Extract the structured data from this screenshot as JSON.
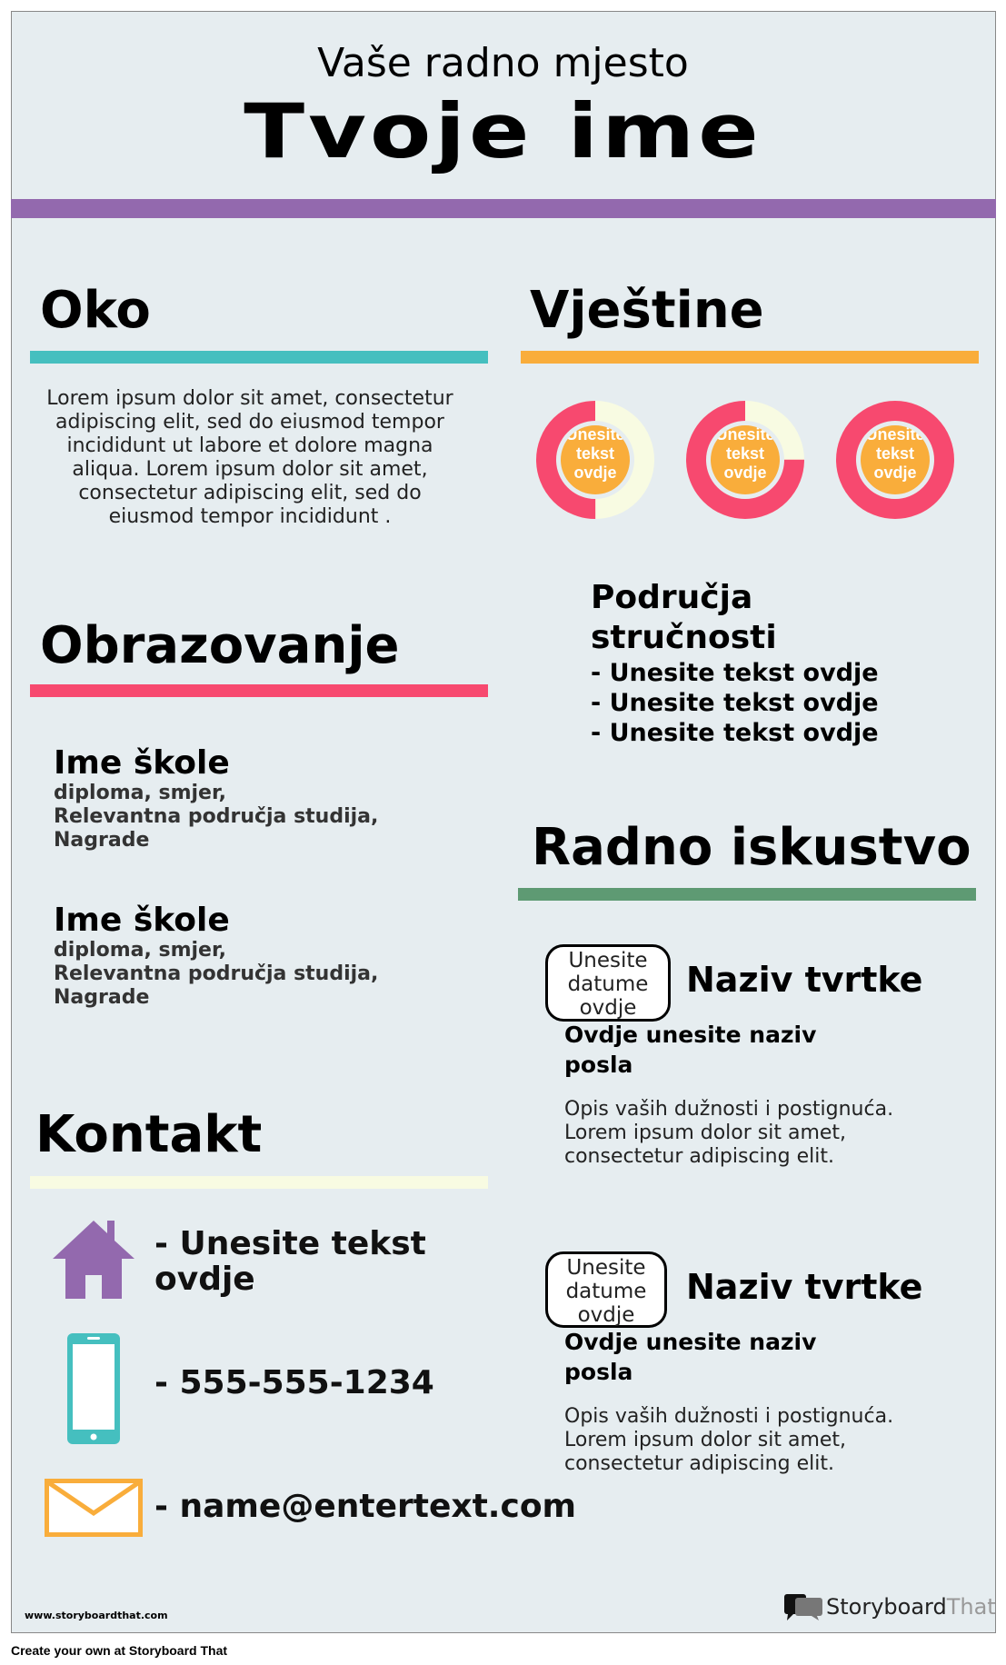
{
  "header": {
    "subtitle": "Vaše radno mjesto",
    "name": "Tvoje ime"
  },
  "colors": {
    "background": "#e6edf0",
    "purple": "#9369ae",
    "teal": "#45bfbf",
    "pink": "#f7496f",
    "orange": "#f9ad3b",
    "green": "#5e9a73",
    "cream": "#f8fbe2"
  },
  "about": {
    "title": "Oko",
    "text": "Lorem ipsum dolor sit amet, consectetur adipiscing elit, sed do eiusmod tempor incididunt ut labore et dolore magna aliqua. Lorem ipsum dolor sit amet, consectetur adipiscing elit, sed do eiusmod tempor incididunt ."
  },
  "education": {
    "title": "Obrazovanje",
    "schools": [
      {
        "name": "Ime škole",
        "line1": "diploma, smjer,",
        "line2": "Relevantna područja studija,",
        "line3": "Nagrade"
      },
      {
        "name": "Ime škole",
        "line1": "diploma, smjer,",
        "line2": "Relevantna područja studija,",
        "line3": "Nagrade"
      }
    ]
  },
  "contact": {
    "title": "Kontakt",
    "address": "- Unesite tekst ovdje",
    "phone": "- 555-555-1234",
    "email": "- name@entertext.com",
    "icons": [
      "house-icon",
      "phone-icon",
      "envelope-icon"
    ]
  },
  "skills": {
    "title": "Vještine",
    "donuts": [
      {
        "label": "Unesite tekst ovdje",
        "percent": 50
      },
      {
        "label": "Unesite tekst ovdje",
        "percent": 75
      },
      {
        "label": "Unesite tekst ovdje",
        "percent": 100
      }
    ],
    "expertise_title": "Područja stručnosti",
    "items": [
      "- Unesite tekst ovdje",
      "- Unesite tekst ovdje",
      "- Unesite tekst ovdje"
    ]
  },
  "experience": {
    "title": "Radno iskustvo",
    "jobs": [
      {
        "dates": "Unesite datume ovdje",
        "company": "Naziv tvrtke",
        "position": "Ovdje unesite naziv posla",
        "description": "Opis vaših dužnosti i postignuća. Lorem ipsum dolor sit amet, consectetur adipiscing elit."
      },
      {
        "dates": "Unesite datume ovdje",
        "company": "Naziv tvrtke",
        "position": "Ovdje unesite naziv posla",
        "description": "Opis vaših dužnosti i postignuća. Lorem ipsum dolor sit amet, consectetur adipiscing elit."
      }
    ]
  },
  "footer": {
    "url": "www.storyboardthat.com",
    "logo_text_1": "Storyboard",
    "logo_text_2": "That",
    "create": "Create your own at Storyboard That"
  }
}
